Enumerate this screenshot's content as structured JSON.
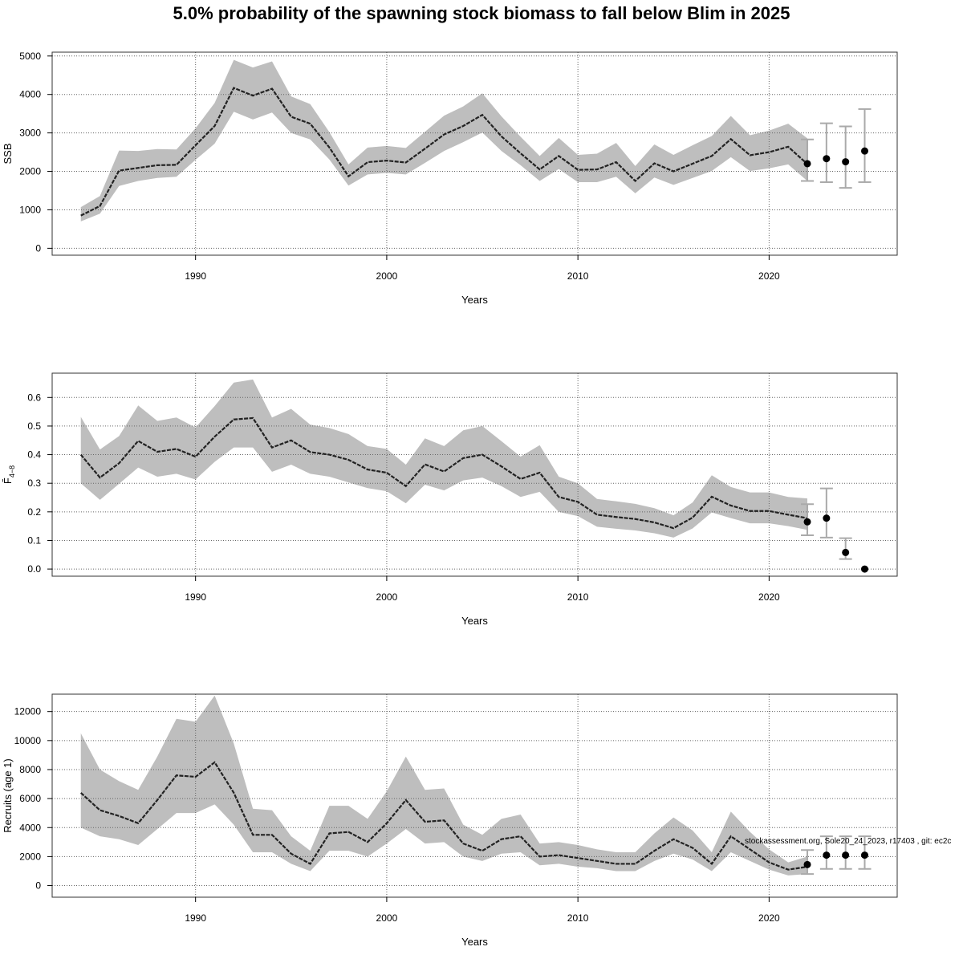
{
  "title": "5.0% probability of the spawning stock biomass to fall below Blim in 2025",
  "credit": "stockassessment.org, Sole20_24_2023, r17403 , git: ec2c",
  "colors": {
    "band": "#bebebe",
    "line": "#222222",
    "point": "#000000",
    "errorbar": "#aaaaaa",
    "grid": "#666666"
  },
  "chart_data": [
    {
      "type": "line",
      "ylabel": "SSB",
      "xlabel": "Years",
      "xlim": [
        1982.5,
        2026.7
      ],
      "ylim": [
        -180,
        5100
      ],
      "xticks": [
        1990,
        2000,
        2010,
        2020
      ],
      "yticks": [
        0,
        1000,
        2000,
        3000,
        4000,
        5000
      ],
      "grid": true,
      "years": [
        1984,
        1985,
        1986,
        1987,
        1988,
        1989,
        1990,
        1991,
        1992,
        1993,
        1994,
        1995,
        1996,
        1997,
        1998,
        1999,
        2000,
        2001,
        2002,
        2003,
        2004,
        2005,
        2006,
        2007,
        2008,
        2009,
        2010,
        2011,
        2012,
        2013,
        2014,
        2015,
        2016,
        2017,
        2018,
        2019,
        2020,
        2021,
        2022
      ],
      "estimate": [
        850,
        1100,
        2020,
        2090,
        2160,
        2170,
        2680,
        3180,
        4170,
        3970,
        4150,
        3420,
        3240,
        2620,
        1870,
        2240,
        2280,
        2230,
        2590,
        2960,
        3180,
        3470,
        2910,
        2470,
        2050,
        2400,
        2040,
        2050,
        2240,
        1750,
        2210,
        2000,
        2200,
        2400,
        2840,
        2420,
        2500,
        2640,
        2190
      ],
      "lower": [
        700,
        900,
        1620,
        1750,
        1830,
        1860,
        2300,
        2720,
        3550,
        3350,
        3530,
        3000,
        2830,
        2310,
        1630,
        1920,
        1960,
        1920,
        2220,
        2530,
        2760,
        3010,
        2530,
        2160,
        1750,
        2060,
        1720,
        1720,
        1860,
        1430,
        1840,
        1650,
        1830,
        2010,
        2370,
        2010,
        2080,
        2180,
        1750
      ],
      "upper": [
        1070,
        1360,
        2540,
        2530,
        2580,
        2570,
        3120,
        3780,
        4900,
        4700,
        4860,
        3950,
        3750,
        3020,
        2180,
        2620,
        2660,
        2610,
        3030,
        3450,
        3690,
        4030,
        3430,
        2900,
        2400,
        2870,
        2430,
        2460,
        2740,
        2140,
        2700,
        2430,
        2680,
        2920,
        3440,
        2940,
        3060,
        3240,
        2860
      ],
      "forecast": {
        "years": [
          2022,
          2023,
          2024,
          2025
        ],
        "median": [
          2200,
          2330,
          2250,
          2530
        ],
        "lower": [
          1750,
          1720,
          1570,
          1720
        ],
        "upper": [
          2830,
          3250,
          3170,
          3620
        ]
      }
    },
    {
      "type": "line",
      "ylabel": "F̄",
      "ylabel_subscript": "4−8",
      "xlabel": "Years",
      "xlim": [
        1982.5,
        2026.7
      ],
      "ylim": [
        -0.025,
        0.685
      ],
      "xticks": [
        1990,
        2000,
        2010,
        2020
      ],
      "yticks": [
        0.0,
        0.1,
        0.2,
        0.3,
        0.4,
        0.5,
        0.6
      ],
      "grid": true,
      "years": [
        1984,
        1985,
        1986,
        1987,
        1988,
        1989,
        1990,
        1991,
        1992,
        1993,
        1994,
        1995,
        1996,
        1997,
        1998,
        1999,
        2000,
        2001,
        2002,
        2003,
        2004,
        2005,
        2006,
        2007,
        2008,
        2009,
        2010,
        2011,
        2012,
        2013,
        2014,
        2015,
        2016,
        2017,
        2018,
        2019,
        2020,
        2021,
        2022
      ],
      "estimate": [
        0.4,
        0.32,
        0.37,
        0.448,
        0.41,
        0.42,
        0.393,
        0.463,
        0.523,
        0.528,
        0.425,
        0.45,
        0.409,
        0.4,
        0.382,
        0.348,
        0.337,
        0.29,
        0.366,
        0.341,
        0.388,
        0.4,
        0.359,
        0.315,
        0.337,
        0.252,
        0.235,
        0.19,
        0.182,
        0.175,
        0.163,
        0.143,
        0.18,
        0.253,
        0.222,
        0.203,
        0.203,
        0.19,
        0.178
      ],
      "lower": [
        0.3,
        0.242,
        0.298,
        0.355,
        0.323,
        0.333,
        0.313,
        0.375,
        0.425,
        0.425,
        0.34,
        0.365,
        0.333,
        0.323,
        0.303,
        0.283,
        0.272,
        0.23,
        0.295,
        0.275,
        0.31,
        0.32,
        0.29,
        0.252,
        0.27,
        0.2,
        0.185,
        0.148,
        0.141,
        0.135,
        0.125,
        0.11,
        0.142,
        0.198,
        0.178,
        0.16,
        0.16,
        0.15,
        0.137
      ],
      "upper": [
        0.532,
        0.418,
        0.465,
        0.572,
        0.518,
        0.53,
        0.495,
        0.57,
        0.652,
        0.663,
        0.53,
        0.56,
        0.505,
        0.493,
        0.472,
        0.43,
        0.42,
        0.365,
        0.457,
        0.43,
        0.485,
        0.5,
        0.447,
        0.393,
        0.433,
        0.323,
        0.3,
        0.245,
        0.237,
        0.228,
        0.213,
        0.188,
        0.233,
        0.328,
        0.287,
        0.268,
        0.268,
        0.252,
        0.247
      ],
      "forecast": {
        "years": [
          2022,
          2023,
          2024,
          2025
        ],
        "median": [
          0.165,
          0.178,
          0.058,
          0.0
        ],
        "lower": [
          0.118,
          0.11,
          0.035,
          0.0
        ],
        "upper": [
          0.227,
          0.282,
          0.108,
          0.0
        ]
      }
    },
    {
      "type": "line",
      "ylabel": "Recruits (age 1)",
      "xlabel": "Years",
      "xlim": [
        1982.5,
        2026.7
      ],
      "ylim": [
        -800,
        13200
      ],
      "xticks": [
        1990,
        2000,
        2010,
        2020
      ],
      "yticks": [
        0,
        2000,
        4000,
        6000,
        8000,
        10000,
        12000
      ],
      "grid": true,
      "years": [
        1984,
        1985,
        1986,
        1987,
        1988,
        1989,
        1990,
        1991,
        1992,
        1993,
        1994,
        1995,
        1996,
        1997,
        1998,
        1999,
        2000,
        2001,
        2002,
        2003,
        2004,
        2005,
        2006,
        2007,
        2008,
        2009,
        2010,
        2011,
        2012,
        2013,
        2014,
        2015,
        2016,
        2017,
        2018,
        2019,
        2020,
        2021,
        2022
      ],
      "estimate": [
        6400,
        5200,
        4800,
        4300,
        5900,
        7600,
        7500,
        8500,
        6400,
        3500,
        3500,
        2200,
        1500,
        3600,
        3700,
        3000,
        4300,
        5900,
        4400,
        4500,
        2900,
        2400,
        3200,
        3400,
        2000,
        2100,
        1900,
        1700,
        1500,
        1500,
        2400,
        3200,
        2600,
        1500,
        3400,
        2500,
        1600,
        1100,
        1300
      ],
      "lower": [
        4000,
        3400,
        3200,
        2800,
        3900,
        5000,
        5000,
        5600,
        4200,
        2300,
        2300,
        1500,
        1000,
        2400,
        2400,
        2000,
        2900,
        3900,
        2900,
        3000,
        2000,
        1700,
        2200,
        2300,
        1400,
        1500,
        1300,
        1200,
        1000,
        1000,
        1700,
        2200,
        1800,
        1000,
        2300,
        1700,
        1100,
        700,
        800
      ],
      "upper": [
        10500,
        8000,
        7200,
        6600,
        8900,
        11500,
        11300,
        13100,
        9800,
        5300,
        5200,
        3400,
        2400,
        5500,
        5500,
        4600,
        6500,
        8900,
        6600,
        6700,
        4200,
        3500,
        4600,
        4900,
        2900,
        3000,
        2800,
        2500,
        2300,
        2300,
        3600,
        4700,
        3800,
        2300,
        5100,
        3700,
        2500,
        1600,
        2000
      ],
      "forecast": {
        "years": [
          2022,
          2023,
          2024,
          2025
        ],
        "median": [
          1450,
          2100,
          2100,
          2100
        ],
        "lower": [
          800,
          1150,
          1150,
          1150
        ],
        "upper": [
          2450,
          3400,
          3400,
          3400
        ]
      }
    }
  ]
}
